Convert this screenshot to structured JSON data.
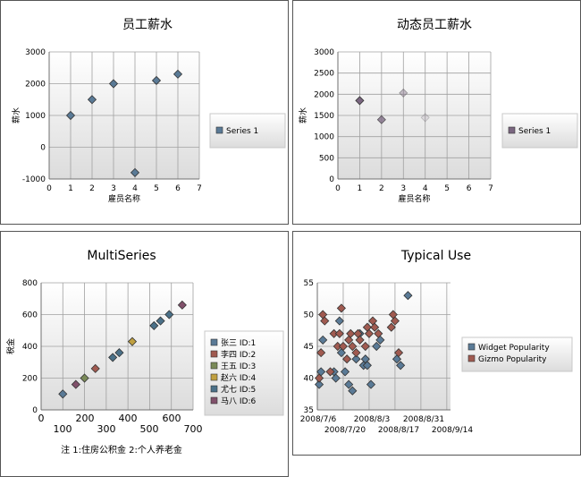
{
  "chart_data": [
    {
      "type": "scatter",
      "title": "员工薪水",
      "xlabel": "雇员名称",
      "ylabel": "薪水",
      "xlim": [
        0,
        7
      ],
      "ylim": [
        -1000,
        3000
      ],
      "x_ticks": [
        "0",
        "1",
        "2",
        "3",
        "4",
        "5",
        "6",
        "7"
      ],
      "y_ticks": [
        "-1000",
        "0",
        "1000",
        "2000",
        "3000"
      ],
      "grid": true,
      "legend": "right",
      "series": [
        {
          "name": "Series 1",
          "color": "#5a7a96",
          "points": [
            [
              1,
              1000
            ],
            [
              2,
              1500
            ],
            [
              3,
              2000
            ],
            [
              4,
              -800
            ],
            [
              5,
              2100
            ],
            [
              6,
              2300
            ]
          ]
        }
      ]
    },
    {
      "type": "scatter",
      "title": "动态员工薪水",
      "xlabel": "雇员名称",
      "ylabel": "薪水",
      "xlim": [
        0,
        7
      ],
      "ylim": [
        0,
        3000
      ],
      "x_ticks": [
        "0",
        "1",
        "2",
        "3",
        "4",
        "5",
        "6",
        "7"
      ],
      "y_ticks": [
        "0",
        "500",
        "1000",
        "1500",
        "2000",
        "2500",
        "3000"
      ],
      "grid": true,
      "legend": "right",
      "series": [
        {
          "name": "Series 1",
          "color": "#7a6680",
          "points": [
            [
              1,
              1850
            ],
            [
              2,
              1400
            ],
            [
              3,
              2030
            ],
            [
              4,
              1450
            ]
          ],
          "opacity": [
            1,
            0.75,
            0.4,
            0.15
          ]
        }
      ]
    },
    {
      "type": "scatter",
      "title": "MultiSeries",
      "note": "注 1:住房公积金 2:个人养老金",
      "xlim": [
        0,
        700
      ],
      "ylim": [
        0,
        800
      ],
      "x_ticks_row1": [
        "0",
        "200",
        "400",
        "600"
      ],
      "x_ticks_row2": [
        "100",
        "300",
        "500",
        "700"
      ],
      "y_ticks": [
        "0",
        "200",
        "400",
        "600",
        "800"
      ],
      "ylabel": "税金",
      "grid": true,
      "legend": "right",
      "series": [
        {
          "name": "张三 ID:1",
          "color": "#5a7a96",
          "points": [
            [
              100,
              100
            ]
          ]
        },
        {
          "name": "李四 ID:2",
          "color": "#a05a50",
          "points": [
            [
              250,
              260
            ]
          ]
        },
        {
          "name": "王五 ID:3",
          "color": "#7a8a58",
          "points": [
            [
              200,
              200
            ]
          ]
        },
        {
          "name": "赵六 ID:4",
          "color": "#c0a040",
          "points": [
            [
              420,
              430
            ]
          ]
        },
        {
          "name": "尤七 ID:5",
          "color": "#4a7088",
          "points": [
            [
              330,
              330
            ],
            [
              360,
              360
            ],
            [
              520,
              530
            ],
            [
              550,
              560
            ],
            [
              590,
              600
            ]
          ]
        },
        {
          "name": "马八 ID:6",
          "color": "#80506a",
          "points": [
            [
              160,
              160
            ],
            [
              650,
              660
            ]
          ]
        }
      ]
    },
    {
      "type": "scatter",
      "title": "Typical Use",
      "xlim": [
        0,
        72
      ],
      "ylim": [
        35,
        55
      ],
      "y_ticks": [
        "35",
        "40",
        "45",
        "50",
        "55"
      ],
      "x_ticks_row1": [
        "2008/7/6",
        "2008/8/3",
        "2008/8/31"
      ],
      "x_ticks_row2": [
        "2008/7/20",
        "2008/8/17",
        "2008/9/14"
      ],
      "grid": true,
      "legend": "right",
      "series": [
        {
          "name": "Widget Popularity",
          "color": "#5a7a96",
          "points": [
            [
              1,
              39
            ],
            [
              2,
              41
            ],
            [
              3,
              46
            ],
            [
              9,
              41
            ],
            [
              10,
              40
            ],
            [
              12,
              49
            ],
            [
              13,
              44
            ],
            [
              15,
              41
            ],
            [
              17,
              39
            ],
            [
              19,
              38
            ],
            [
              21,
              43
            ],
            [
              23,
              47
            ],
            [
              25,
              42
            ],
            [
              26,
              43
            ],
            [
              27,
              42
            ],
            [
              29,
              39
            ],
            [
              32,
              45
            ],
            [
              34,
              46
            ],
            [
              43,
              43
            ],
            [
              45,
              42
            ],
            [
              49,
              53
            ]
          ]
        },
        {
          "name": "Gizmo Popularity",
          "color": "#a05a50",
          "points": [
            [
              1,
              40
            ],
            [
              2,
              44
            ],
            [
              3,
              50
            ],
            [
              4,
              49
            ],
            [
              7,
              41
            ],
            [
              9,
              47
            ],
            [
              11,
              45
            ],
            [
              12,
              47
            ],
            [
              13,
              51
            ],
            [
              14,
              45
            ],
            [
              16,
              43
            ],
            [
              17,
              46
            ],
            [
              18,
              47
            ],
            [
              19,
              45
            ],
            [
              21,
              44
            ],
            [
              22,
              47
            ],
            [
              23,
              46
            ],
            [
              26,
              45
            ],
            [
              27,
              48
            ],
            [
              28,
              47
            ],
            [
              30,
              49
            ],
            [
              31,
              48
            ],
            [
              33,
              47
            ],
            [
              40,
              48
            ],
            [
              41,
              50
            ],
            [
              42,
              49
            ],
            [
              44,
              44
            ]
          ]
        }
      ]
    }
  ]
}
